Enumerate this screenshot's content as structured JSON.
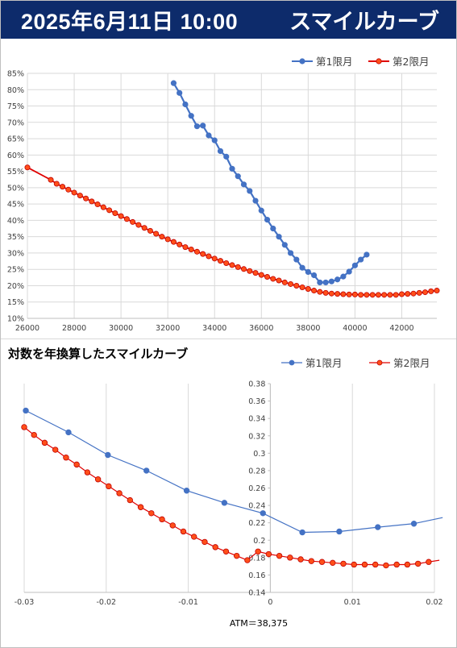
{
  "header": {
    "datetime": "2025年6月11日 10:00",
    "title": "スマイルカーブ"
  },
  "colors": {
    "header_bg": "#0d2b6b",
    "series1": "#4472c4",
    "series2_fill": "#ff4f1a",
    "series2_line": "#e00000",
    "grid": "#d9d9d9"
  },
  "chart_data": [
    {
      "type": "line",
      "title": "",
      "xlabel": "",
      "ylabel": "",
      "xlim": [
        26000,
        43500
      ],
      "ylim": [
        0.1,
        0.85
      ],
      "xticks": [
        26000,
        28000,
        30000,
        32000,
        34000,
        36000,
        38000,
        40000,
        42000
      ],
      "yticks": [
        0.1,
        0.15,
        0.2,
        0.25,
        0.3,
        0.35,
        0.4,
        0.45,
        0.5,
        0.55,
        0.6,
        0.65,
        0.7,
        0.75,
        0.8,
        0.85
      ],
      "ytick_labels": [
        "10%",
        "15%",
        "20%",
        "25%",
        "30%",
        "35%",
        "40%",
        "45%",
        "50%",
        "55%",
        "60%",
        "65%",
        "70%",
        "75%",
        "80%",
        "85%"
      ],
      "grid": true,
      "legend_position": "top-right",
      "series": [
        {
          "name": "第1限月",
          "x": [
            32250,
            32500,
            32750,
            33000,
            33250,
            33500,
            33750,
            34000,
            34250,
            34500,
            34750,
            35000,
            35250,
            35500,
            35750,
            36000,
            36250,
            36500,
            36750,
            37000,
            37250,
            37500,
            37750,
            38000,
            38250,
            38500,
            38750,
            39000,
            39250,
            39500,
            39750,
            40000,
            40250,
            40500
          ],
          "y": [
            0.82,
            0.79,
            0.755,
            0.72,
            0.688,
            0.69,
            0.66,
            0.645,
            0.612,
            0.595,
            0.558,
            0.535,
            0.51,
            0.49,
            0.46,
            0.43,
            0.402,
            0.375,
            0.35,
            0.325,
            0.3,
            0.28,
            0.255,
            0.242,
            0.232,
            0.21,
            0.21,
            0.213,
            0.219,
            0.228,
            0.243,
            0.262,
            0.28,
            0.295
          ]
        },
        {
          "name": "第2限月",
          "x": [
            26000,
            27000,
            27250,
            27500,
            27750,
            28000,
            28250,
            28500,
            28750,
            29000,
            29250,
            29500,
            29750,
            30000,
            30250,
            30500,
            30750,
            31000,
            31250,
            31500,
            31750,
            32000,
            32250,
            32500,
            32750,
            33000,
            33250,
            33500,
            33750,
            34000,
            34250,
            34500,
            34750,
            35000,
            35250,
            35500,
            35750,
            36000,
            36250,
            36500,
            36750,
            37000,
            37250,
            37500,
            37750,
            38000,
            38250,
            38500,
            38750,
            39000,
            39250,
            39500,
            39750,
            40000,
            40250,
            40500,
            40750,
            41000,
            41250,
            41500,
            41750,
            42000,
            42250,
            42500,
            42750,
            43000,
            43250,
            43500
          ],
          "y": [
            0.562,
            0.524,
            0.512,
            0.503,
            0.494,
            0.485,
            0.476,
            0.467,
            0.458,
            0.449,
            0.44,
            0.431,
            0.422,
            0.413,
            0.404,
            0.395,
            0.386,
            0.377,
            0.368,
            0.359,
            0.35,
            0.342,
            0.334,
            0.326,
            0.318,
            0.311,
            0.304,
            0.297,
            0.29,
            0.283,
            0.276,
            0.269,
            0.263,
            0.257,
            0.251,
            0.245,
            0.239,
            0.233,
            0.227,
            0.221,
            0.216,
            0.21,
            0.205,
            0.2,
            0.195,
            0.19,
            0.185,
            0.181,
            0.178,
            0.176,
            0.175,
            0.174,
            0.173,
            0.173,
            0.172,
            0.172,
            0.172,
            0.172,
            0.172,
            0.172,
            0.172,
            0.174,
            0.175,
            0.176,
            0.178,
            0.18,
            0.183,
            0.185
          ]
        }
      ]
    },
    {
      "type": "line",
      "title": "対数を年換算したスマイルカーブ",
      "xlabel": "ATM＝38,375",
      "ylabel": "",
      "xlim": [
        -0.03,
        0.02
      ],
      "ylim": [
        0.14,
        0.38
      ],
      "xticks": [
        -0.03,
        -0.02,
        -0.01,
        0,
        0.01,
        0.02
      ],
      "xtick_labels": [
        "-0.03",
        "-0.02",
        "-0.01",
        "0",
        "0.01",
        "0.02"
      ],
      "yticks": [
        0.14,
        0.16,
        0.18,
        0.2,
        0.22,
        0.24,
        0.26,
        0.28,
        0.3,
        0.32,
        0.34,
        0.36,
        0.38
      ],
      "ytick_labels": [
        "0.14",
        "0.16",
        "0.18",
        "0.2",
        "0.22",
        "0.24",
        "0.26",
        "0.28",
        "0.3",
        "0.32",
        "0.34",
        "0.36",
        "0.38"
      ],
      "grid": true,
      "legend_position": "top-right",
      "series": [
        {
          "name": "第1限月",
          "x": [
            -0.0298,
            -0.0246,
            -0.0198,
            -0.0151,
            -0.0102,
            -0.0056,
            -0.0009,
            0.0039,
            0.0084,
            0.0131,
            0.0175,
            0.021
          ],
          "y": [
            0.349,
            0.324,
            0.298,
            0.28,
            0.257,
            0.243,
            0.231,
            0.209,
            0.21,
            0.215,
            0.219,
            0.226
          ]
        },
        {
          "name": "第2限月",
          "x": [
            -0.03,
            -0.0288,
            -0.0275,
            -0.0262,
            -0.0249,
            -0.0236,
            -0.0223,
            -0.021,
            -0.0197,
            -0.0184,
            -0.0171,
            -0.0158,
            -0.0145,
            -0.0132,
            -0.0119,
            -0.0106,
            -0.0093,
            -0.008,
            -0.0067,
            -0.0054,
            -0.0041,
            -0.0028,
            -0.0015,
            -0.0002,
            0.0011,
            0.0024,
            0.0037,
            0.005,
            0.0063,
            0.0076,
            0.0089,
            0.0102,
            0.0115,
            0.0128,
            0.0141,
            0.0154,
            0.0167,
            0.018,
            0.0193,
            0.0206
          ],
          "y": [
            0.33,
            0.321,
            0.312,
            0.304,
            0.295,
            0.287,
            0.278,
            0.27,
            0.262,
            0.254,
            0.246,
            0.238,
            0.231,
            0.224,
            0.217,
            0.21,
            0.204,
            0.198,
            0.192,
            0.187,
            0.182,
            0.177,
            0.187,
            0.184,
            0.182,
            0.18,
            0.178,
            0.176,
            0.175,
            0.174,
            0.173,
            0.172,
            0.172,
            0.172,
            0.171,
            0.172,
            0.172,
            0.173,
            0.175,
            0.177
          ]
        }
      ]
    }
  ]
}
